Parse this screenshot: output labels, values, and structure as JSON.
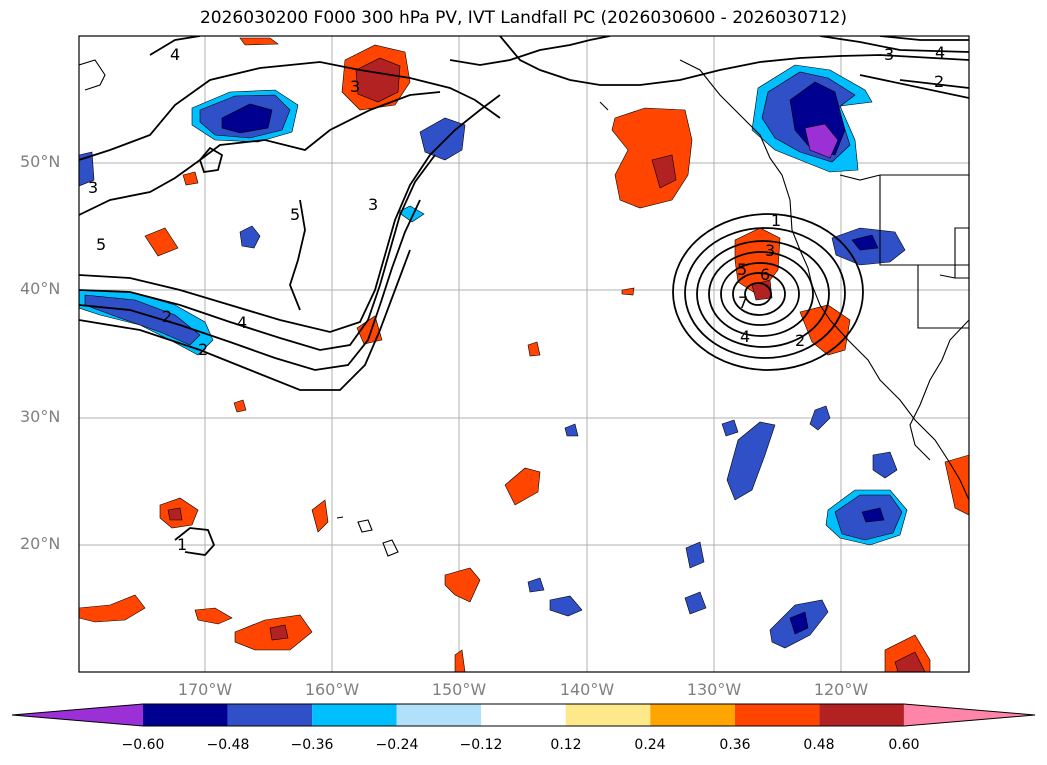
{
  "title": "2026030200 F000 300 hPa PV, IVT Landfall PC (2026030600 - 2026030712)",
  "lat_labels": [
    "50°N",
    "40°N",
    "30°N",
    "20°N"
  ],
  "lon_labels": [
    "170°W",
    "160°W",
    "150°W",
    "140°W",
    "130°W",
    "120°W"
  ],
  "colorbar": {
    "ticks": [
      "−0.60",
      "−0.48",
      "−0.36",
      "−0.24",
      "−0.12",
      "0.12",
      "0.24",
      "0.36",
      "0.48",
      "0.60"
    ],
    "colors": [
      "#9b30d6",
      "#000090",
      "#3050c8",
      "#00bfff",
      "#b0e0fa",
      "#ffffff",
      "#fde98a",
      "#ffa500",
      "#ff4500",
      "#b22222",
      "#ff85a8"
    ]
  },
  "contour_labels": [
    "4",
    "3",
    "3",
    "5",
    "5",
    "3",
    "4",
    "2",
    "2",
    "3",
    "4",
    "2",
    "1",
    "3",
    "5",
    "6",
    "7",
    "4",
    "2",
    "1"
  ]
}
